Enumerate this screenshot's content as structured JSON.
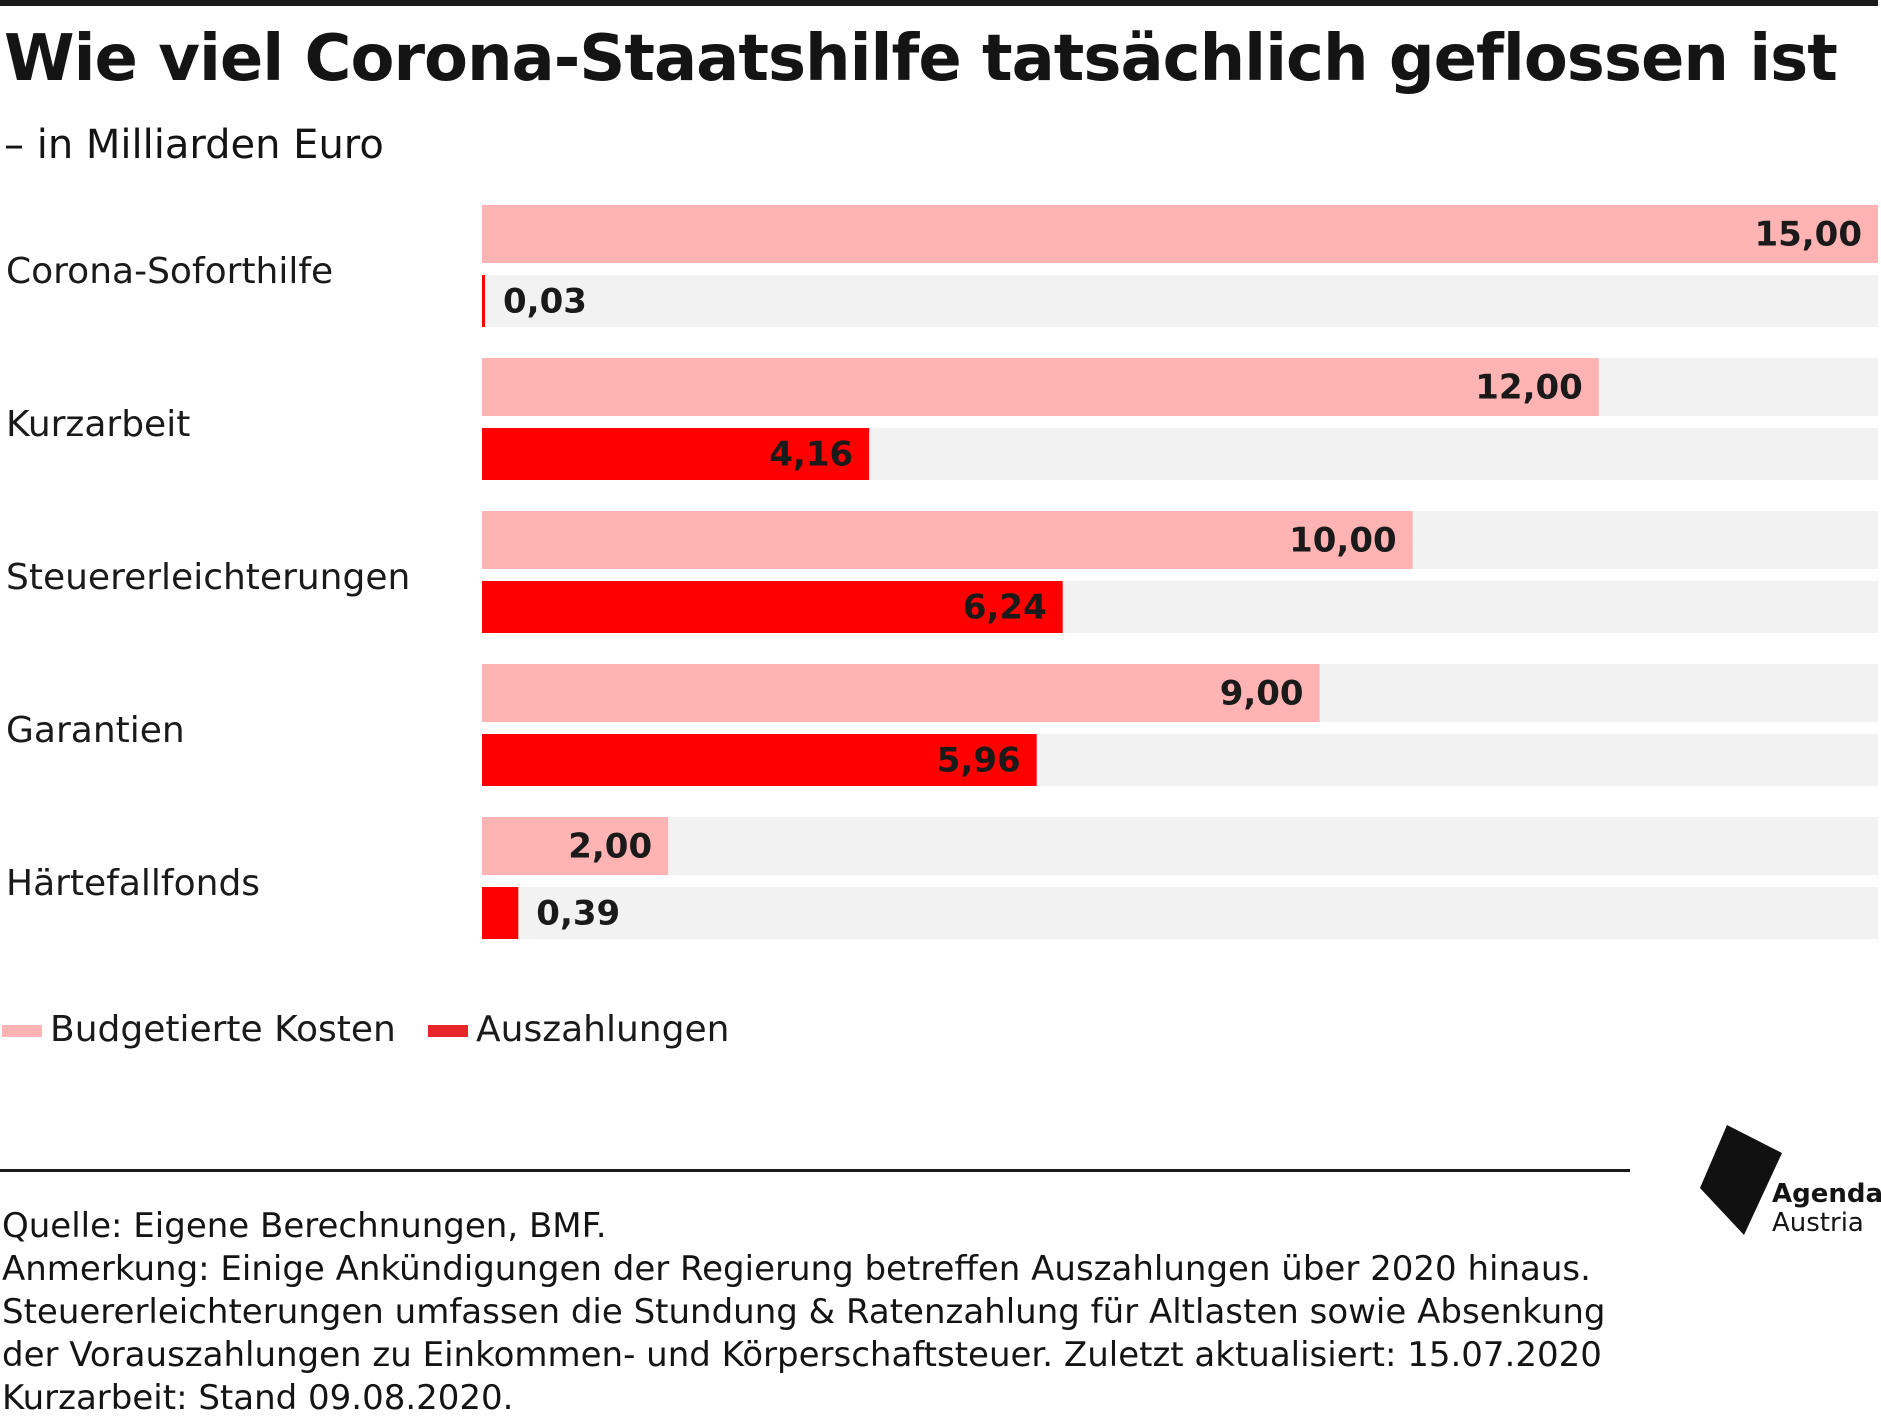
{
  "title": "Wie viel Corona-Staatshilfe tatsächlich geflossen ist",
  "subtitle": "– in Milliarden Euro",
  "colors": {
    "budget": "#ffb3b3",
    "payout": "#ff0000",
    "track": "#f2f2f2",
    "legend_payout": "#e8262a",
    "text": "#1a1a1a"
  },
  "chart_data": {
    "type": "bar",
    "orientation": "horizontal",
    "categories": [
      "Corona-Soforthilfe",
      "Kurzarbeit",
      "Steuererleichterungen",
      "Garantien",
      "Härtefallfonds"
    ],
    "series": [
      {
        "name": "Budgetierte Kosten",
        "values": [
          15.0,
          12.0,
          10.0,
          9.0,
          2.0
        ],
        "labels": [
          "15,00",
          "12,00",
          "10,00",
          "9,00",
          "2,00"
        ]
      },
      {
        "name": "Auszahlungen",
        "values": [
          0.03,
          4.16,
          6.24,
          5.96,
          0.39
        ],
        "labels": [
          "0,03",
          "4,16",
          "6,24",
          "5,96",
          "0,39"
        ]
      }
    ],
    "xlim": [
      0,
      15
    ],
    "grid": false,
    "legend_position": "bottom-left"
  },
  "legend": {
    "budget_label": "Budgetierte Kosten",
    "payout_label": "Auszahlungen"
  },
  "notes": {
    "line1": "Quelle: Eigene Berechnungen, BMF.",
    "line2": "Anmerkung: Einige Ankündigungen der Regierung betreffen Auszahlungen über 2020 hinaus.",
    "line3": "Steuererleichterungen umfassen die Stundung & Ratenzahlung für Altlasten sowie Absenkung",
    "line4": "der Vorauszahlungen zu Einkommen- und Körperschaftsteuer. Zuletzt aktualisiert: 15.07.2020",
    "line5": "Kurzarbeit: Stand 09.08.2020."
  },
  "logo": {
    "line1": "Agenda",
    "line2": "Austria"
  }
}
